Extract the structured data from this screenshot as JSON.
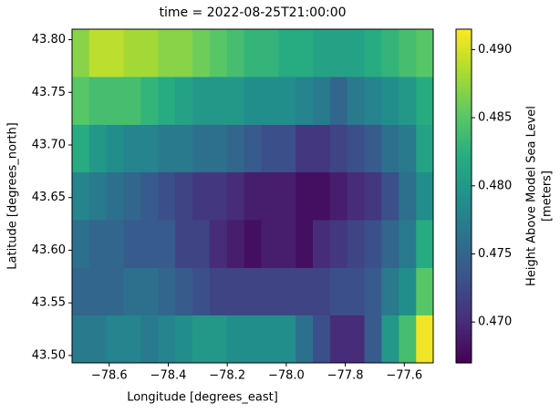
{
  "chart_data": {
    "type": "heatmap",
    "title": "time = 2022-08-25T21:00:00",
    "x_label": "Longitude [degrees_east]",
    "y_label": "Latitude [degrees_north]",
    "colorbar_label": [
      "Height Above Model Sea Level",
      "[meters]"
    ],
    "colormap": "viridis",
    "x": [
      -78.697,
      -78.639,
      -78.58,
      -78.522,
      -78.464,
      -78.406,
      -78.347,
      -78.289,
      -78.231,
      -78.172,
      -78.114,
      -78.056,
      -77.997,
      -77.939,
      -77.881,
      -77.823,
      -77.764,
      -77.706,
      -77.648,
      -77.589,
      -77.531
    ],
    "y": [
      43.516,
      43.561,
      43.606,
      43.652,
      43.697,
      43.742,
      43.788
    ],
    "z": [
      [
        0.477,
        0.477,
        0.478,
        0.478,
        0.477,
        0.478,
        0.479,
        0.48,
        0.48,
        0.479,
        0.479,
        0.479,
        0.479,
        0.476,
        0.473,
        0.47,
        0.47,
        0.474,
        0.48,
        0.484,
        0.491
      ],
      [
        0.475,
        0.475,
        0.475,
        0.476,
        0.476,
        0.475,
        0.474,
        0.473,
        0.472,
        0.472,
        0.472,
        0.472,
        0.472,
        0.472,
        0.472,
        0.473,
        0.473,
        0.474,
        0.477,
        0.479,
        0.485
      ],
      [
        0.476,
        0.475,
        0.475,
        0.474,
        0.474,
        0.474,
        0.472,
        0.472,
        0.47,
        0.469,
        0.468,
        0.469,
        0.469,
        0.468,
        0.47,
        0.471,
        0.472,
        0.473,
        0.475,
        0.477,
        0.482
      ],
      [
        0.478,
        0.477,
        0.476,
        0.475,
        0.474,
        0.473,
        0.472,
        0.471,
        0.471,
        0.47,
        0.469,
        0.469,
        0.469,
        0.468,
        0.468,
        0.469,
        0.47,
        0.471,
        0.473,
        0.476,
        0.479
      ],
      [
        0.482,
        0.48,
        0.479,
        0.478,
        0.478,
        0.477,
        0.477,
        0.476,
        0.476,
        0.475,
        0.474,
        0.473,
        0.473,
        0.471,
        0.471,
        0.472,
        0.473,
        0.474,
        0.476,
        0.477,
        0.481
      ],
      [
        0.485,
        0.484,
        0.484,
        0.484,
        0.483,
        0.482,
        0.481,
        0.48,
        0.48,
        0.48,
        0.479,
        0.479,
        0.479,
        0.478,
        0.477,
        0.475,
        0.477,
        0.478,
        0.479,
        0.48,
        0.482
      ],
      [
        0.487,
        0.489,
        0.489,
        0.488,
        0.488,
        0.487,
        0.487,
        0.486,
        0.485,
        0.484,
        0.483,
        0.483,
        0.482,
        0.482,
        0.481,
        0.481,
        0.481,
        0.482,
        0.483,
        0.484,
        0.485
      ]
    ],
    "xlim": [
      -78.726,
      -77.502
    ],
    "ylim": [
      43.493,
      43.81
    ],
    "zlim": [
      0.467,
      0.4915
    ],
    "xticks": [
      {
        "value": -78.6,
        "label": "−78.6"
      },
      {
        "value": -78.4,
        "label": "−78.4"
      },
      {
        "value": -78.2,
        "label": "−78.2"
      },
      {
        "value": -78.0,
        "label": "−78.0"
      },
      {
        "value": -77.8,
        "label": "−77.8"
      },
      {
        "value": -77.6,
        "label": "−77.6"
      }
    ],
    "yticks": [
      {
        "value": 43.5,
        "label": "43.50"
      },
      43.55,
      {
        "value": 43.6,
        "label": "43.60"
      },
      43.65,
      {
        "value": 43.7,
        "label": "43.70"
      },
      43.75,
      {
        "value": 43.8,
        "label": "43.80"
      }
    ],
    "zticks": [
      {
        "value": 0.47,
        "label": "0.470"
      },
      0.475,
      {
        "value": 0.48,
        "label": "0.480"
      },
      0.485,
      {
        "value": 0.49,
        "label": "0.490"
      }
    ]
  }
}
